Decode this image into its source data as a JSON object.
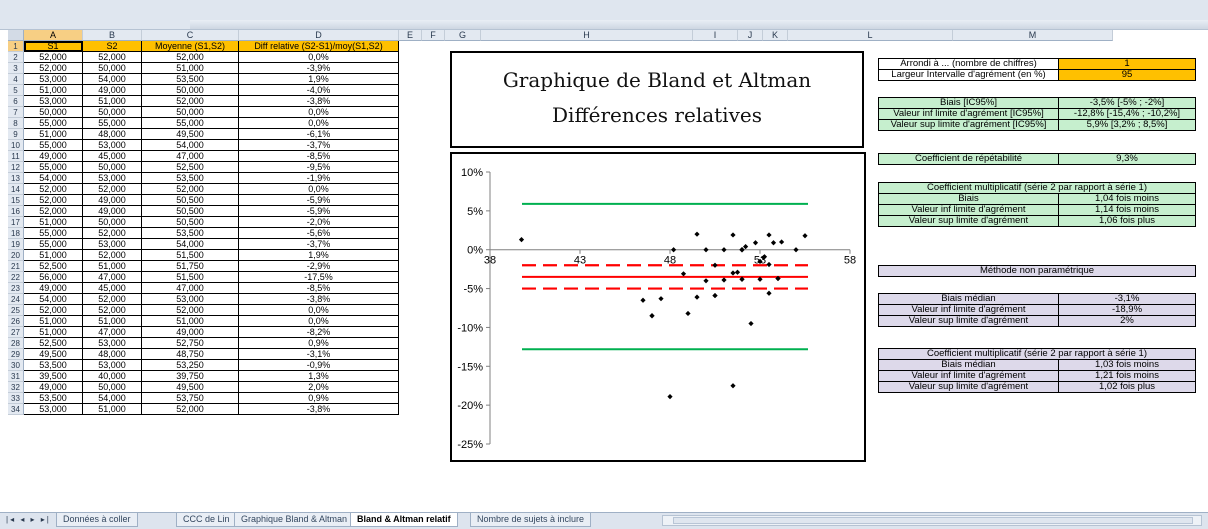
{
  "columns": [
    "A",
    "B",
    "C",
    "D",
    "E",
    "F",
    "G",
    "H",
    "I",
    "J",
    "K",
    "L",
    "M"
  ],
  "table": {
    "headers": [
      "S1",
      "S2",
      "Moyenne (S1,S2)",
      "Diff relative (S2-S1)/moy(S1,S2)"
    ],
    "row_numbers": [
      "1",
      "2",
      "3",
      "4",
      "5",
      "6",
      "7",
      "8",
      "9",
      "10",
      "11",
      "12",
      "13",
      "14",
      "15",
      "16",
      "17",
      "18",
      "19",
      "20",
      "21",
      "22",
      "23",
      "24",
      "25",
      "26",
      "27",
      "28",
      "29",
      "30",
      "31",
      "32",
      "33",
      "34"
    ],
    "rows": [
      [
        "52,000",
        "52,000",
        "52,000",
        "0,0%"
      ],
      [
        "52,000",
        "50,000",
        "51,000",
        "-3,9%"
      ],
      [
        "53,000",
        "54,000",
        "53,500",
        "1,9%"
      ],
      [
        "51,000",
        "49,000",
        "50,000",
        "-4,0%"
      ],
      [
        "53,000",
        "51,000",
        "52,000",
        "-3,8%"
      ],
      [
        "50,000",
        "50,000",
        "50,000",
        "0,0%"
      ],
      [
        "55,000",
        "55,000",
        "55,000",
        "0,0%"
      ],
      [
        "51,000",
        "48,000",
        "49,500",
        "-6,1%"
      ],
      [
        "55,000",
        "53,000",
        "54,000",
        "-3,7%"
      ],
      [
        "49,000",
        "45,000",
        "47,000",
        "-8,5%"
      ],
      [
        "55,000",
        "50,000",
        "52,500",
        "-9,5%"
      ],
      [
        "54,000",
        "53,000",
        "53,500",
        "-1,9%"
      ],
      [
        "52,000",
        "52,000",
        "52,000",
        "0,0%"
      ],
      [
        "52,000",
        "49,000",
        "50,500",
        "-5,9%"
      ],
      [
        "52,000",
        "49,000",
        "50,500",
        "-5,9%"
      ],
      [
        "51,000",
        "50,000",
        "50,500",
        "-2,0%"
      ],
      [
        "55,000",
        "52,000",
        "53,500",
        "-5,6%"
      ],
      [
        "55,000",
        "53,000",
        "54,000",
        "-3,7%"
      ],
      [
        "51,000",
        "52,000",
        "51,500",
        "1,9%"
      ],
      [
        "52,500",
        "51,000",
        "51,750",
        "-2,9%"
      ],
      [
        "56,000",
        "47,000",
        "51,500",
        "-17,5%"
      ],
      [
        "49,000",
        "45,000",
        "47,000",
        "-8,5%"
      ],
      [
        "54,000",
        "52,000",
        "53,000",
        "-3,8%"
      ],
      [
        "52,000",
        "52,000",
        "52,000",
        "0,0%"
      ],
      [
        "51,000",
        "51,000",
        "51,000",
        "0,0%"
      ],
      [
        "51,000",
        "47,000",
        "49,000",
        "-8,2%"
      ],
      [
        "52,500",
        "53,000",
        "52,750",
        "0,9%"
      ],
      [
        "49,500",
        "48,000",
        "48,750",
        "-3,1%"
      ],
      [
        "53,500",
        "53,000",
        "53,250",
        "-0,9%"
      ],
      [
        "39,500",
        "40,000",
        "39,750",
        "1,3%"
      ],
      [
        "49,000",
        "50,000",
        "49,500",
        "2,0%"
      ],
      [
        "53,500",
        "54,000",
        "53,750",
        "0,9%"
      ],
      [
        "53,000",
        "51,000",
        "52,000",
        "-3,8%"
      ]
    ]
  },
  "title": {
    "line1": "Graphique de Bland et Altman",
    "line2": "Différences relatives"
  },
  "settings": {
    "rows": [
      {
        "label": "Arrondi à ... (nombre de chiffres)",
        "value": "1"
      },
      {
        "label": "Largeur Intervalle d'agrément (en %)",
        "value": "95"
      }
    ]
  },
  "bias": {
    "rows": [
      {
        "label": "Biais [IC95%]",
        "value": "-3,5% [-5% ; -2%]"
      },
      {
        "label": "Valeur inf limite d'agrément [IC95%]",
        "value": "-12,8% [-15,4% ; -10,2%]"
      },
      {
        "label": "Valeur sup limite d'agrément [IC95%]",
        "value": "5,9% [3,2% ; 8,5%]"
      }
    ]
  },
  "repeatability": {
    "label": "Coefficient de répétabilité",
    "value": "9,3%"
  },
  "mult1": {
    "title": "Coefficient multiplicatif (série 2 par rapport à série 1)",
    "rows": [
      {
        "label": "Biais",
        "value": "1,04 fois moins"
      },
      {
        "label": "Valeur inf limite d'agrément",
        "value": "1,14 fois moins"
      },
      {
        "label": "Valeur sup limite d'agrément",
        "value": "1,06 fois plus"
      }
    ]
  },
  "nonparam": {
    "title": "Méthode non paramétrique"
  },
  "median": {
    "rows": [
      {
        "label": "Biais médian",
        "value": "-3,1%"
      },
      {
        "label": "Valeur inf limite d'agrément",
        "value": "-18,9%"
      },
      {
        "label": "Valeur sup limite d'agrément",
        "value": "2%"
      }
    ]
  },
  "mult2": {
    "title": "Coefficient multiplicatif (série 2 par rapport à série 1)",
    "rows": [
      {
        "label": "Biais médian",
        "value": "1,03 fois moins"
      },
      {
        "label": "Valeur inf limite d'agrément",
        "value": "1,21 fois moins"
      },
      {
        "label": "Valeur sup limite d'agrément",
        "value": "1,02 fois plus"
      }
    ]
  },
  "sheet_tabs": [
    "Données à coller",
    "CCC de Lin",
    "Graphique Bland & Altman",
    "Bland & Altman relatif",
    "Nombre de sujets à inclure"
  ],
  "active_tab": "Bland & Altman relatif",
  "chart_data": {
    "type": "scatter",
    "xlim": [
      38,
      58
    ],
    "ylim": [
      -25,
      10
    ],
    "x_ticks": [
      "38",
      "43",
      "48",
      "53",
      "58"
    ],
    "y_ticks": [
      "10%",
      "5%",
      "0%",
      "-5%",
      "-10%",
      "-15%",
      "-20%",
      "-25%"
    ],
    "y_tick_values": [
      10,
      5,
      0,
      -5,
      -10,
      -15,
      -20,
      -25
    ],
    "points": [
      [
        52,
        0.0
      ],
      [
        51,
        -3.9
      ],
      [
        53.5,
        1.9
      ],
      [
        50,
        -4.0
      ],
      [
        52,
        -3.8
      ],
      [
        50,
        0.0
      ],
      [
        55,
        0.0
      ],
      [
        49.5,
        -6.1
      ],
      [
        54,
        -3.7
      ],
      [
        47,
        -8.5
      ],
      [
        52.5,
        -9.5
      ],
      [
        53.5,
        -1.9
      ],
      [
        52,
        0.0
      ],
      [
        50.5,
        -5.9
      ],
      [
        50.5,
        -5.9
      ],
      [
        50.5,
        -2.0
      ],
      [
        53.5,
        -5.6
      ],
      [
        54,
        -3.7
      ],
      [
        51.5,
        1.9
      ],
      [
        51.75,
        -2.9
      ],
      [
        51.5,
        -17.5
      ],
      [
        47,
        -8.5
      ],
      [
        53,
        -3.8
      ],
      [
        52,
        0.0
      ],
      [
        51,
        0.0
      ],
      [
        49,
        -8.2
      ],
      [
        52.75,
        0.9
      ],
      [
        48.75,
        -3.1
      ],
      [
        53.25,
        -0.9
      ],
      [
        39.75,
        1.3
      ],
      [
        49.5,
        2.0
      ],
      [
        53.75,
        0.9
      ],
      [
        52,
        -3.8
      ],
      [
        46.5,
        -6.5
      ],
      [
        47.5,
        -6.3
      ],
      [
        48,
        -18.9
      ],
      [
        48.2,
        0.0
      ],
      [
        51.5,
        -3.0
      ],
      [
        53.2,
        -1.0
      ],
      [
        55.5,
        1.8
      ],
      [
        53,
        -1.5
      ],
      [
        54.2,
        1.0
      ],
      [
        52.2,
        0.4
      ]
    ],
    "lines": [
      {
        "y": 5.9,
        "style": "solid",
        "color": "#00b050"
      },
      {
        "y": -12.8,
        "style": "solid",
        "color": "#00b050"
      },
      {
        "y": -3.5,
        "style": "solid",
        "color": "#ff0000"
      },
      {
        "y": -2.0,
        "style": "dashed",
        "color": "#ff0000"
      },
      {
        "y": -5.0,
        "style": "dashed",
        "color": "#ff0000"
      }
    ]
  },
  "colors": {
    "header_orange": "#ffc000",
    "green_fill": "#c6efce",
    "purple_fill": "#ddd9ea"
  }
}
